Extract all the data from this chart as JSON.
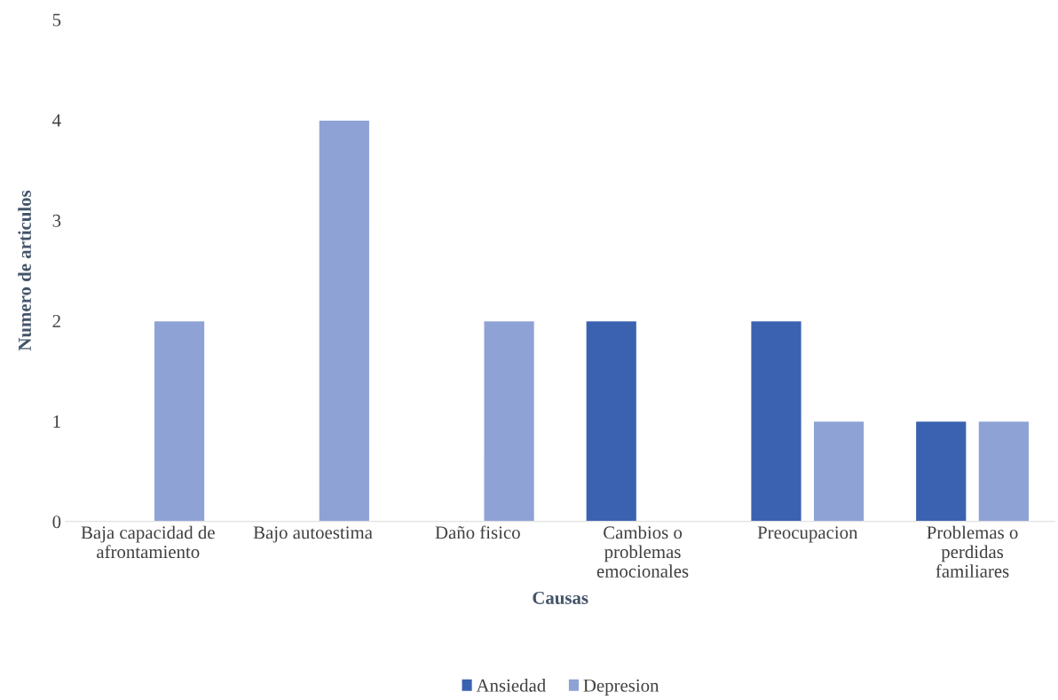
{
  "chart_data": {
    "type": "bar",
    "xlabel": "Causas",
    "ylabel": "Numero de articulos",
    "categories": [
      "Baja capacidad de afrontamiento",
      "Bajo autoestima",
      "Daño fisico",
      "Cambios o problemas emocionales",
      "Preocupacion",
      "Problemas o perdidas familiares"
    ],
    "series": [
      {
        "name": "Ansiedad",
        "color": "#3a62b0",
        "values": [
          null,
          null,
          null,
          2,
          2,
          1
        ]
      },
      {
        "name": "Depresion",
        "color": "#8ea2d6",
        "values": [
          2,
          4,
          2,
          null,
          1,
          1
        ]
      }
    ],
    "ylim": [
      0,
      5
    ],
    "yticks": [
      0,
      1,
      2,
      3,
      4,
      5
    ],
    "grid": false,
    "legend": "bottom"
  }
}
